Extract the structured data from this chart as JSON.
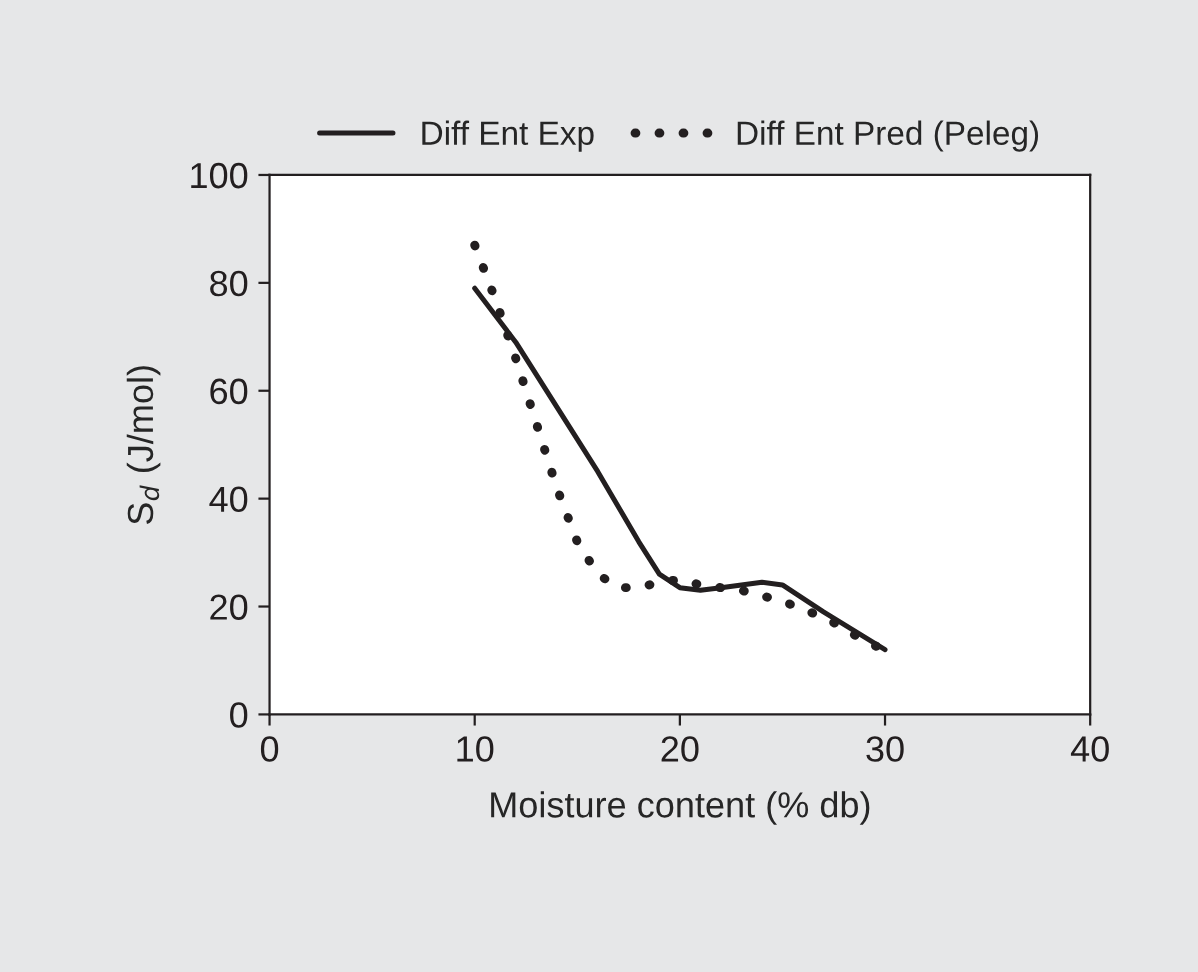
{
  "chart_data": {
    "type": "line",
    "xlabel": "Moisture content (% db)",
    "ylabel": "S$_{d}$ (J/mol)",
    "xlim": [
      0,
      40
    ],
    "xticks": [
      0,
      10,
      20,
      30,
      40
    ],
    "ylim": [
      0,
      100
    ],
    "yticks": [
      0,
      20,
      40,
      60,
      80,
      100
    ],
    "grid": false,
    "legend": "top",
    "series": [
      {
        "name": "Diff Ent Exp",
        "color": "#231f20",
        "line_style": "solid",
        "x": [
          10,
          12,
          14,
          16,
          18,
          19,
          20,
          21,
          22,
          23,
          24,
          25,
          27,
          30
        ],
        "values": [
          79,
          69,
          57,
          45,
          32,
          26,
          23.5,
          23,
          23.5,
          24,
          24.5,
          24,
          19,
          12
        ]
      },
      {
        "name": "Diff Ent Pred (Peleg)",
        "color": "#231f20",
        "line_style": "dotted",
        "x": [
          10,
          10.5,
          11,
          12,
          13,
          14,
          15,
          16,
          17,
          18,
          19,
          20,
          21,
          22,
          23,
          24,
          25,
          26,
          27,
          28,
          29,
          30
        ],
        "values": [
          87,
          82,
          77,
          66,
          54,
          42,
          32,
          26,
          23.5,
          23.5,
          24.5,
          25,
          24,
          23.5,
          23,
          22,
          21,
          19.5,
          18,
          16,
          13.5,
          12
        ]
      }
    ]
  }
}
